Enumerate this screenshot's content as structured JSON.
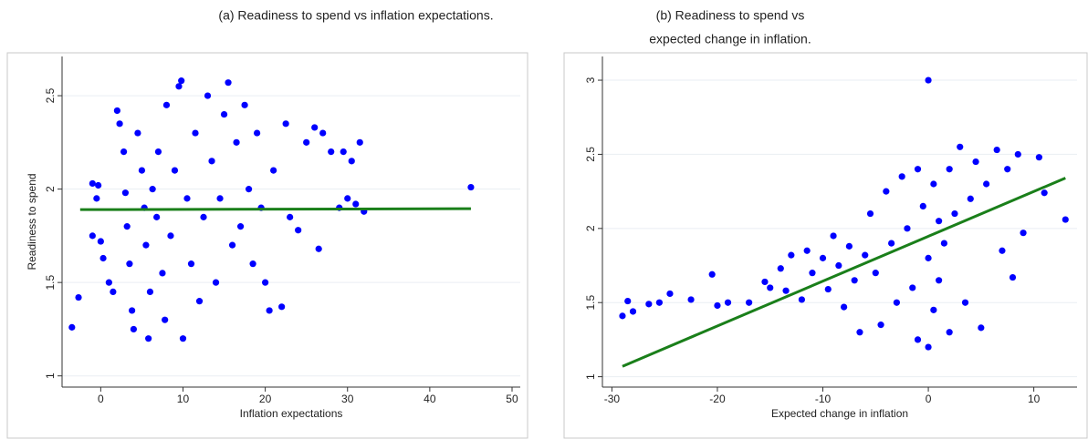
{
  "chart_data": [
    {
      "type": "scatter",
      "title": [
        "(a) Readiness to spend vs inflation expectations."
      ],
      "x_label": "Inflation expectations",
      "y_label": "Readiness to spend",
      "xlim": [
        -4.7,
        51
      ],
      "ylim": [
        0.94,
        2.71
      ],
      "xticks": [
        0,
        10,
        20,
        30,
        40,
        50
      ],
      "yticks": [
        1,
        1.5,
        2,
        2.5
      ],
      "grid": true,
      "series": [
        {
          "color": "#0000ff",
          "x": [
            -3.5,
            -2.7,
            -1,
            -0.3,
            -0.5,
            -1,
            0,
            0.3,
            1,
            1.5,
            2,
            2.3,
            2.8,
            3,
            3.2,
            3.5,
            3.8,
            4,
            4.5,
            5,
            5.3,
            5.5,
            5.8,
            6,
            6.3,
            6.8,
            7,
            7.5,
            7.8,
            8,
            8.5,
            9,
            9.5,
            9.8,
            10,
            10.5,
            11,
            11.5,
            12,
            12.5,
            13,
            13.5,
            14,
            14.5,
            15,
            15.5,
            16,
            16.5,
            17,
            17.5,
            18,
            18.5,
            19,
            19.5,
            20,
            20.5,
            21,
            22,
            22.5,
            23,
            24,
            25,
            26,
            26.5,
            27,
            28,
            29,
            29.5,
            30,
            30.5,
            31,
            31.5,
            32,
            45
          ],
          "values": [
            1.26,
            1.42,
            2.03,
            2.02,
            1.95,
            1.75,
            1.72,
            1.63,
            1.5,
            1.45,
            2.42,
            2.35,
            2.2,
            1.98,
            1.8,
            1.6,
            1.35,
            1.25,
            2.3,
            2.1,
            1.9,
            1.7,
            1.2,
            1.45,
            2.0,
            1.85,
            2.2,
            1.55,
            1.3,
            2.45,
            1.75,
            2.1,
            2.55,
            2.58,
            1.2,
            1.95,
            1.6,
            2.3,
            1.4,
            1.85,
            2.5,
            2.15,
            1.5,
            1.95,
            2.4,
            2.57,
            1.7,
            2.25,
            1.8,
            2.45,
            2.0,
            1.6,
            2.3,
            1.9,
            1.5,
            1.35,
            2.1,
            1.37,
            2.35,
            1.85,
            1.78,
            2.25,
            2.33,
            1.68,
            2.3,
            2.2,
            1.9,
            2.2,
            1.95,
            2.15,
            1.92,
            2.25,
            1.88,
            2.01
          ]
        }
      ],
      "fit": {
        "color": "#1a7f1a",
        "x": [
          -2.5,
          45
        ],
        "values": [
          1.89,
          1.895
        ]
      }
    },
    {
      "type": "scatter",
      "title": [
        "(b) Readiness to spend vs",
        "expected change in inflation."
      ],
      "x_label": "Expected change in inflation",
      "xlim": [
        -30.9,
        14.1
      ],
      "ylim": [
        0.93,
        3.16
      ],
      "xticks": [
        -30,
        -20,
        -10,
        0,
        10
      ],
      "yticks": [
        1,
        1.5,
        2,
        2.5,
        3
      ],
      "grid": true,
      "series": [
        {
          "color": "#0000ff",
          "x": [
            -29,
            -28.5,
            -28,
            -26.5,
            -25.5,
            -24.5,
            -22.5,
            -20.5,
            -20,
            -19,
            -17,
            -15.5,
            -15,
            -14,
            -13.5,
            -13,
            -12,
            -11.5,
            -11,
            -10,
            -9.5,
            -9,
            -8.5,
            -8,
            -7.5,
            -7,
            -6.5,
            -6,
            -5.5,
            -5,
            -4.5,
            -4,
            -3.5,
            -3,
            -2.5,
            -2,
            -1.5,
            -1,
            -1,
            -0.5,
            0,
            0,
            0,
            0.5,
            0.5,
            1,
            1,
            1.5,
            2,
            2,
            2.5,
            3,
            3.5,
            4,
            4.5,
            5,
            5.5,
            6.5,
            7,
            7.5,
            8,
            8.5,
            9,
            10.5,
            11,
            13
          ],
          "values": [
            1.41,
            1.51,
            1.44,
            1.49,
            1.5,
            1.56,
            1.52,
            1.69,
            1.48,
            1.5,
            1.5,
            1.64,
            1.6,
            1.73,
            1.58,
            1.82,
            1.52,
            1.85,
            1.7,
            1.8,
            1.59,
            1.95,
            1.75,
            1.47,
            1.88,
            1.65,
            1.3,
            1.82,
            2.1,
            1.7,
            1.35,
            2.25,
            1.9,
            1.5,
            2.35,
            2.0,
            1.6,
            1.25,
            2.4,
            2.15,
            1.8,
            1.2,
            3.0,
            2.3,
            1.45,
            2.05,
            1.65,
            1.9,
            2.4,
            1.3,
            2.1,
            2.55,
            1.5,
            2.2,
            2.45,
            1.33,
            2.3,
            2.53,
            1.85,
            2.4,
            1.67,
            2.5,
            1.97,
            2.48,
            2.24,
            2.06
          ]
        }
      ],
      "fit": {
        "color": "#1a7f1a",
        "x": [
          -29,
          13
        ],
        "values": [
          1.07,
          2.34
        ]
      }
    }
  ]
}
